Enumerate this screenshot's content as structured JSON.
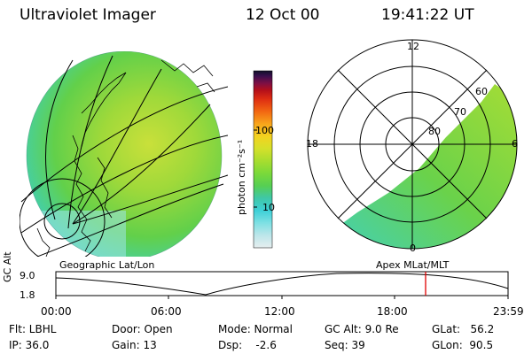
{
  "header": {
    "title": "Ultraviolet Imager",
    "date": "12 Oct 00",
    "time": "19:41:22 UT"
  },
  "colorbar": {
    "unit_label": "photon cm⁻²s⁻¹",
    "ticks": [
      "100",
      "10"
    ],
    "colors": [
      "#e6eeef",
      "#bde6ea",
      "#7ee0e3",
      "#3ed0d7",
      "#3fc7a8",
      "#56cf53",
      "#7ad93a",
      "#a7dd2f",
      "#d5e02a",
      "#f4d21f",
      "#f8a51b",
      "#f26712",
      "#de2e12",
      "#b40f1a",
      "#7d0f45",
      "#3a0f4d",
      "#101028"
    ]
  },
  "left_panel": {
    "caption": "Geographic Lat/Lon"
  },
  "right_panel": {
    "caption": "Apex MLat/MLT",
    "mlt_labels": {
      "top": "12",
      "left": "18",
      "right": "6",
      "bottom": "0"
    },
    "lat_labels": [
      "60",
      "70",
      "80"
    ]
  },
  "altitude_plot": {
    "ylabel": "GC Alt",
    "yticks": [
      "9.0",
      "1.8"
    ],
    "xticks": [
      "00:00",
      "06:00",
      "12:00",
      "18:00",
      "23:59"
    ],
    "marker_color": "#e00000"
  },
  "status": {
    "flt": "Flt: LBHL",
    "ip": "IP: 36.0",
    "door": "Door: Open",
    "gain": "Gain: 13",
    "mode": "Mode: Normal",
    "dsp": "Dsp:    -2.6",
    "gc_alt": "GC Alt: 9.0 Re",
    "seq": "Seq: 39",
    "glat": "GLat:   56.2",
    "glon": "GLon:  90.5"
  }
}
